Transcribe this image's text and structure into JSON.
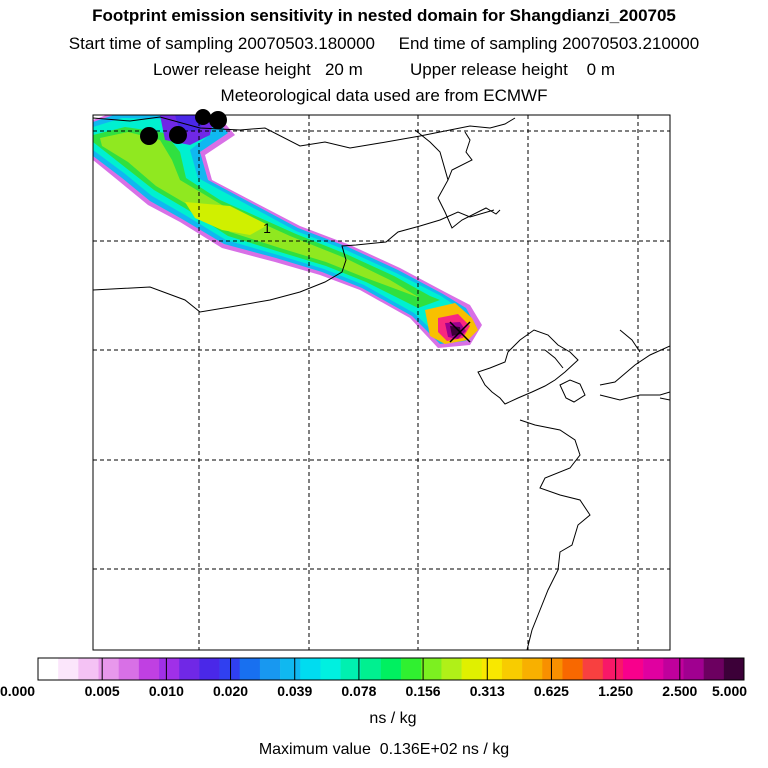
{
  "header": {
    "title": "Footprint emission sensitivity in nested domain for Shangdianzi_200705",
    "sampling_line": "Start time of sampling 20070503.180000     End time of sampling 20070503.210000",
    "release_line": "Lower release height   20 m          Upper release height    0 m",
    "met_line": "Meteorological data used are from ECMWF"
  },
  "map": {
    "contour_label": "1"
  },
  "colorbar": {
    "ticks": [
      "0.000",
      "0.005",
      "0.010",
      "0.020",
      "0.039",
      "0.078",
      "0.156",
      "0.313",
      "0.625",
      "1.250",
      "2.500",
      "5.000"
    ],
    "units": "ns / kg",
    "colors": [
      "#ffffff",
      "#fbe6fb",
      "#f4c2f4",
      "#e898ec",
      "#d870e6",
      "#c040e2",
      "#a030e8",
      "#7028e6",
      "#4a28e8",
      "#3040f0",
      "#1870f0",
      "#1898f0",
      "#10b8f0",
      "#00dcf0",
      "#00f0e0",
      "#00f0b0",
      "#00f090",
      "#00f060",
      "#30f030",
      "#7cf020",
      "#b0f018",
      "#e0f000",
      "#f8e800",
      "#f8cc00",
      "#f8b000",
      "#f89000",
      "#f86800",
      "#f84040",
      "#f81868",
      "#f8008c",
      "#e000a0",
      "#c0009c",
      "#a00090",
      "#6c0060",
      "#3c0038"
    ]
  },
  "footer": {
    "max_value": "Maximum value  0.136E+02 ns / kg"
  }
}
